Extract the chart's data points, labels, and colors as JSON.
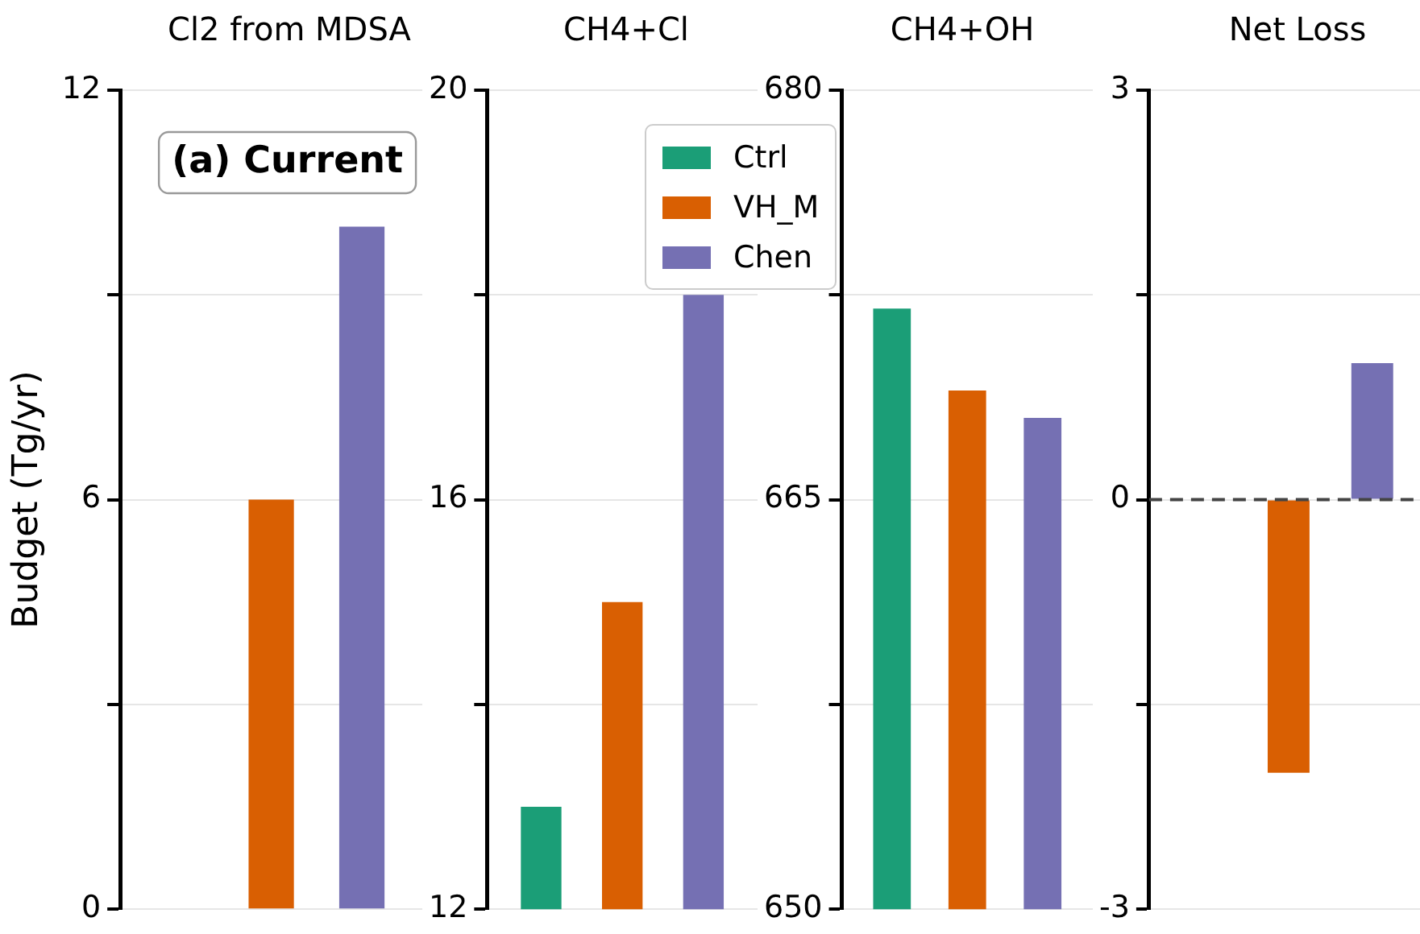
{
  "chart_data": [
    {
      "type": "bar",
      "title": "Cl2 from MDSA",
      "ylabel": "Budget (Tg/yr)",
      "categories": [
        null
      ],
      "annotations": [
        "(a) Current"
      ],
      "ylim": [
        0,
        12
      ],
      "yticks": [
        0,
        {
          "value": 3,
          "label": null
        },
        6,
        {
          "value": 9,
          "label": null
        },
        12
      ],
      "grid": "y",
      "series": [
        {
          "color": "#1b9e77",
          "values": [
            0
          ]
        },
        {
          "color": "#d95f02",
          "values": [
            6
          ]
        },
        {
          "color": "#7570b3",
          "values": [
            10
          ]
        }
      ]
    },
    {
      "type": "bar",
      "title": "CH4+Cl",
      "categories": [
        null
      ],
      "ylim": [
        12,
        20
      ],
      "yticks": [
        12,
        {
          "value": 14,
          "label": null
        },
        16,
        {
          "value": 18,
          "label": null
        },
        20
      ],
      "grid": "y",
      "legend": "top right",
      "series": [
        {
          "name": "Ctrl",
          "color": "#1b9e77",
          "values": [
            13
          ]
        },
        {
          "name": "VH_M",
          "color": "#d95f02",
          "values": [
            15
          ]
        },
        {
          "name": "Chen",
          "color": "#7570b3",
          "values": [
            18
          ]
        }
      ]
    },
    {
      "type": "bar",
      "title": "CH4+OH",
      "categories": [
        null
      ],
      "ylim": [
        650,
        680
      ],
      "yticks": [
        650,
        {
          "value": 657.5,
          "label": null
        },
        665,
        {
          "value": 672.5,
          "label": null
        },
        680
      ],
      "grid": "y",
      "series": [
        {
          "color": "#1b9e77",
          "values": [
            672
          ]
        },
        {
          "color": "#d95f02",
          "values": [
            669
          ]
        },
        {
          "color": "#7570b3",
          "values": [
            668
          ]
        }
      ]
    },
    {
      "type": "bar",
      "title": "Net Loss",
      "categories": [
        null
      ],
      "ylim": [
        -3,
        3
      ],
      "yticks": [
        -3,
        {
          "value": -1.5,
          "label": null
        },
        0,
        {
          "value": 1.5,
          "label": null
        },
        3
      ],
      "grid": "y",
      "ref_lines": [
        {
          "axis": "y",
          "value": 0,
          "line_style": "dashed",
          "color": "#444444"
        }
      ],
      "series": [
        {
          "color": "#1b9e77",
          "values": [
            0
          ]
        },
        {
          "color": "#d95f02",
          "values": [
            -2
          ]
        },
        {
          "color": "#7570b3",
          "values": [
            1
          ]
        }
      ]
    }
  ]
}
